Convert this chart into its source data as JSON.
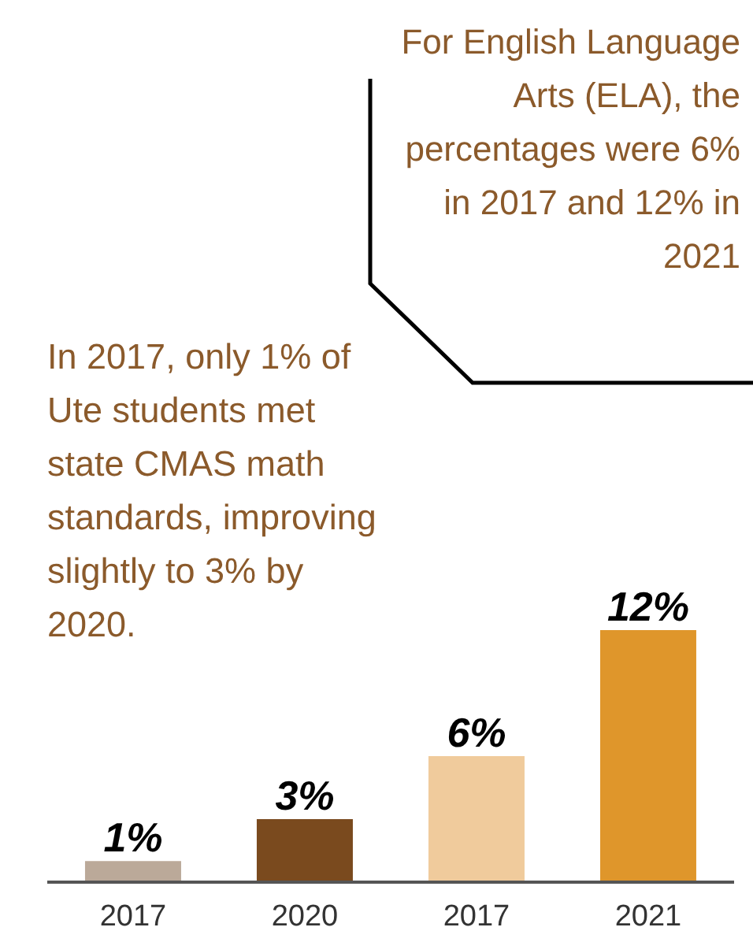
{
  "chart_data": {
    "type": "bar",
    "categories": [
      "2017",
      "2020",
      "2017",
      "2021"
    ],
    "values": [
      1,
      3,
      6,
      12
    ],
    "colors": [
      "#bba999",
      "#7a4a1e",
      "#f0cb9c",
      "#df962b"
    ],
    "data_labels": true,
    "value_labels": [
      "1%",
      "3%",
      "6%",
      "12%"
    ],
    "annotations": [
      "For English Language Arts (ELA), the percentages were 6% in 2017 and 12% in 2021",
      "In 2017, only 1% of Ute students met state CMAS math standards, improving slightly to 3% by 2020."
    ]
  }
}
